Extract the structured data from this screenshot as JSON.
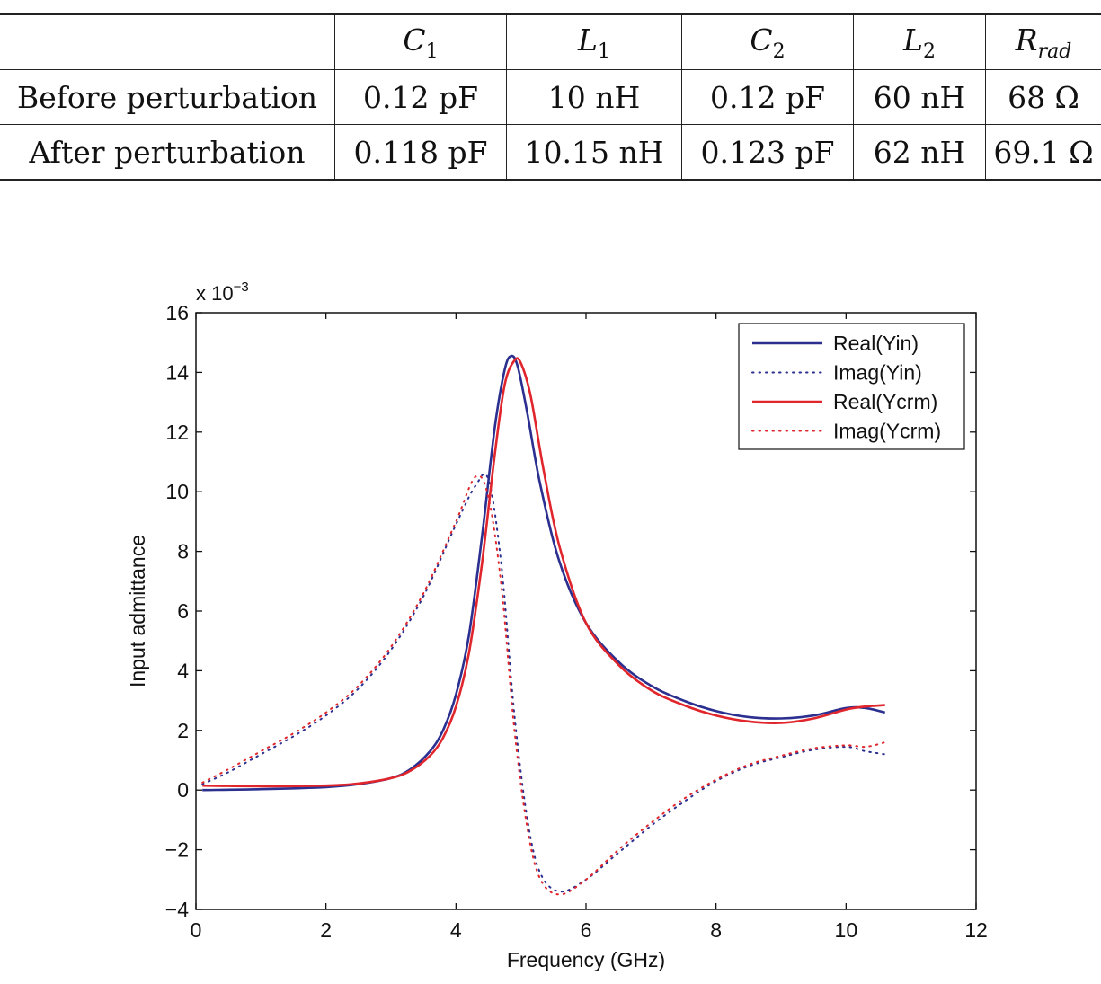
{
  "table": {
    "headers": [
      {
        "sym": "C",
        "sub": "1",
        "sub_italic": false
      },
      {
        "sym": "L",
        "sub": "1",
        "sub_italic": false
      },
      {
        "sym": "C",
        "sub": "2",
        "sub_italic": false
      },
      {
        "sym": "L",
        "sub": "2",
        "sub_italic": false
      },
      {
        "sym": "R",
        "sub": "rad",
        "sub_italic": true
      }
    ],
    "rows": [
      {
        "label": "Before perturbation",
        "cells": [
          "0.12 pF",
          "10 nH",
          "0.12 pF",
          "60 nH",
          "68 Ω"
        ]
      },
      {
        "label": "After perturbation",
        "cells": [
          "0.118 pF",
          "10.15 nH",
          "0.123 pF",
          "62 nH",
          "69.1 Ω"
        ]
      }
    ]
  },
  "chart_data": {
    "type": "line",
    "title": "",
    "xlabel": "Frequency (GHz)",
    "ylabel": "Input admittance",
    "y_multiplier_label": "x 10",
    "y_multiplier_exp": "−3",
    "xlim": [
      0,
      12
    ],
    "ylim": [
      -4,
      16
    ],
    "xticks": [
      "0",
      "2",
      "4",
      "6",
      "8",
      "10",
      "12"
    ],
    "yticks": [
      "−4",
      "−2",
      "0",
      "2",
      "4",
      "6",
      "8",
      "10",
      "12",
      "14",
      "16"
    ],
    "grid": false,
    "legend_position": "top-right",
    "series": [
      {
        "name": "Real(Yin)",
        "color": "#2b2f8f",
        "style": "solid",
        "x": [
          0.1,
          1,
          2,
          2.5,
          3,
          3.3,
          3.6,
          3.8,
          4,
          4.2,
          4.4,
          4.6,
          4.75,
          4.85,
          4.95,
          5.1,
          5.3,
          5.6,
          6,
          6.5,
          7,
          7.5,
          8,
          8.5,
          9,
          9.5,
          10,
          10.3,
          10.6
        ],
        "y": [
          0.0,
          0.03,
          0.1,
          0.2,
          0.4,
          0.7,
          1.3,
          2.0,
          3.2,
          5.2,
          8.5,
          12.2,
          14.1,
          14.55,
          14.2,
          12.6,
          10.2,
          7.6,
          5.6,
          4.3,
          3.5,
          3.0,
          2.65,
          2.45,
          2.4,
          2.5,
          2.75,
          2.75,
          2.6
        ]
      },
      {
        "name": "Imag(Yin)",
        "color": "#2b2f8f",
        "style": "dotted",
        "x": [
          0.1,
          0.5,
          1,
          1.5,
          2,
          2.5,
          3,
          3.5,
          4,
          4.3,
          4.5,
          4.7,
          4.9,
          5.1,
          5.3,
          5.6,
          6,
          6.5,
          7,
          7.5,
          8,
          8.5,
          9,
          9.5,
          10,
          10.3,
          10.6
        ],
        "y": [
          0.2,
          0.6,
          1.2,
          1.8,
          2.5,
          3.4,
          4.7,
          6.5,
          8.9,
          10.2,
          10.4,
          7.5,
          2.5,
          -1.0,
          -2.8,
          -3.4,
          -3.0,
          -2.1,
          -1.2,
          -0.4,
          0.3,
          0.8,
          1.1,
          1.35,
          1.45,
          1.3,
          1.2
        ]
      },
      {
        "name": "Real(Ycrm)",
        "color": "#e0262c",
        "style": "solid",
        "x": [
          0.1,
          1,
          2,
          2.5,
          3,
          3.3,
          3.6,
          3.8,
          4,
          4.2,
          4.4,
          4.6,
          4.75,
          4.9,
          5.0,
          5.15,
          5.35,
          5.6,
          6,
          6.5,
          7,
          7.5,
          8,
          8.5,
          9,
          9.5,
          10,
          10.3,
          10.6
        ],
        "y": [
          0.15,
          0.13,
          0.15,
          0.22,
          0.4,
          0.65,
          1.15,
          1.75,
          2.8,
          4.6,
          7.6,
          11.3,
          13.6,
          14.4,
          14.3,
          13.2,
          10.7,
          8.1,
          5.6,
          4.2,
          3.35,
          2.85,
          2.5,
          2.3,
          2.25,
          2.4,
          2.7,
          2.8,
          2.85
        ]
      },
      {
        "name": "Imag(Ycrm)",
        "color": "#e0262c",
        "style": "dotted",
        "x": [
          0.1,
          0.5,
          1,
          1.5,
          2,
          2.5,
          3,
          3.5,
          4,
          4.3,
          4.5,
          4.7,
          4.9,
          5.1,
          5.3,
          5.6,
          6,
          6.5,
          7,
          7.5,
          8,
          8.5,
          9,
          9.5,
          10,
          10.3,
          10.6
        ],
        "y": [
          0.25,
          0.7,
          1.3,
          1.9,
          2.6,
          3.5,
          4.8,
          6.6,
          9.0,
          10.5,
          9.8,
          6.8,
          2.0,
          -1.3,
          -3.0,
          -3.5,
          -3.0,
          -2.0,
          -1.1,
          -0.3,
          0.35,
          0.85,
          1.15,
          1.4,
          1.5,
          1.45,
          1.6
        ]
      }
    ]
  }
}
